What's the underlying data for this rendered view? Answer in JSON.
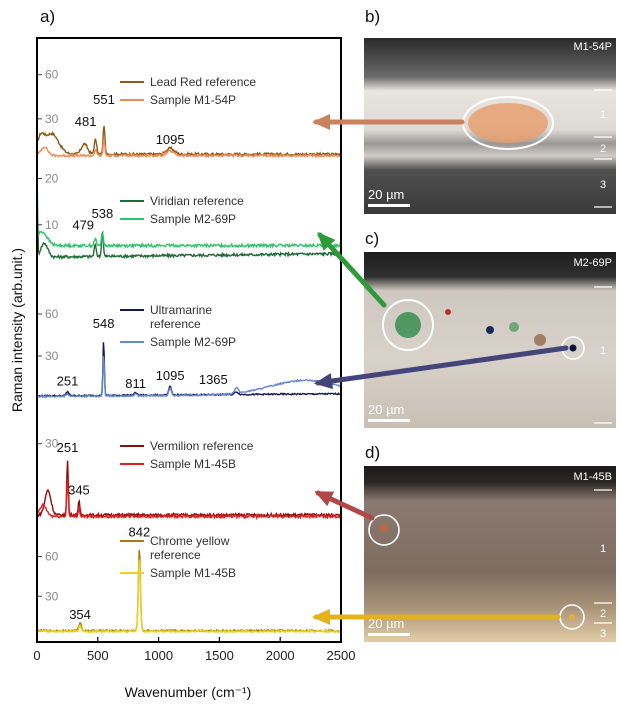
{
  "panels": {
    "a": "a)",
    "b": "b)",
    "c": "c)",
    "d": "d)"
  },
  "chart_data": {
    "type": "line",
    "xlabel": "Wavenumber (cm⁻¹)",
    "ylabel": "Raman intensity (arb.unit.)",
    "xlim": [
      0,
      2500
    ],
    "x_ticks": [
      "0",
      "500",
      "1000",
      "1500",
      "2000",
      "2500"
    ],
    "grid": false,
    "stacks": [
      {
        "id": "lead",
        "ylim": [
          0,
          70
        ],
        "y_ticks": [
          30,
          60
        ],
        "y_tick_labels": [
          "30",
          "60"
        ],
        "series": [
          {
            "name": "Lead Red reference",
            "color": "#8a5a14",
            "base": 6,
            "noise": 0.8,
            "slope": 0,
            "peaks": [
              [
                30,
                10,
                40
              ],
              [
                120,
                14,
                80
              ],
              [
                390,
                7,
                35
              ],
              [
                481,
                10,
                14
              ],
              [
                551,
                20,
                10
              ],
              [
                1095,
                4,
                45
              ]
            ]
          },
          {
            "name": "Sample M1-54P",
            "color": "#f08a55",
            "base": 5,
            "noise": 0.8,
            "slope": 0,
            "peaks": [
              [
                60,
                6,
                40
              ],
              [
                481,
                4,
                12
              ],
              [
                551,
                11,
                10
              ],
              [
                1095,
                3,
                45
              ]
            ]
          }
        ],
        "annotations": [
          {
            "text": "551",
            "x": 551,
            "y": 40
          },
          {
            "text": "481",
            "x": 400,
            "y": 25
          },
          {
            "text": "1095",
            "x": 1095,
            "y": 13
          }
        ]
      },
      {
        "id": "viridian",
        "ylim": [
          0,
          24
        ],
        "y_ticks": [
          10,
          20
        ],
        "y_tick_labels": [
          "10",
          "20"
        ],
        "series": [
          {
            "name": "Viridian reference",
            "color": "#1f6b3a",
            "base": 3,
            "noise": 0.3,
            "slope": 0.0003,
            "peaks": [
              [
                0,
                20,
                6
              ],
              [
                60,
                3,
                40
              ],
              [
                479,
                2.5,
                12
              ],
              [
                538,
                5.5,
                10
              ]
            ]
          },
          {
            "name": "Sample M2-69P",
            "color": "#2fc46a",
            "base": 5.5,
            "noise": 0.3,
            "slope": 0,
            "peaks": [
              [
                40,
                3,
                60
              ],
              [
                479,
                1.5,
                12
              ],
              [
                538,
                3,
                10
              ]
            ]
          }
        ],
        "annotations": [
          {
            "text": "538",
            "x": 538,
            "y": 11.5
          },
          {
            "text": "479",
            "x": 380,
            "y": 9
          }
        ]
      },
      {
        "id": "ultramarine",
        "ylim": [
          0,
          70
        ],
        "y_ticks": [
          30,
          60
        ],
        "y_tick_labels": [
          "30",
          "60"
        ],
        "series": [
          {
            "name": "Ultramarine reference",
            "color": "#16185a",
            "base": 1.5,
            "noise": 0.5,
            "slope": 0.0006,
            "peaks": [
              [
                251,
                3,
                15
              ],
              [
                548,
                40,
                8
              ],
              [
                811,
                2,
                15
              ],
              [
                1095,
                6,
                15
              ],
              [
                1640,
                2,
                20
              ]
            ]
          },
          {
            "name": "Sample M2-69P",
            "color": "#6688cc",
            "base": 1,
            "noise": 0.5,
            "slope": 0.0007,
            "peaks": [
              [
                251,
                2,
                15
              ],
              [
                548,
                30,
                8
              ],
              [
                811,
                1.5,
                15
              ],
              [
                1095,
                5,
                15
              ],
              [
                1640,
                4,
                20
              ],
              [
                2200,
                10,
                400
              ]
            ]
          }
        ],
        "annotations": [
          {
            "text": "548",
            "x": 548,
            "y": 50
          },
          {
            "text": "251",
            "x": 251,
            "y": 9
          },
          {
            "text": "811",
            "x": 811,
            "y": 7
          },
          {
            "text": "1095",
            "x": 1095,
            "y": 13
          },
          {
            "text": "1365",
            "x": 1450,
            "y": 10
          }
        ]
      },
      {
        "id": "vermilion",
        "ylim": [
          0,
          35
        ],
        "y_ticks": [
          30
        ],
        "y_tick_labels": [
          "30"
        ],
        "series": [
          {
            "name": "Vermilion reference",
            "color": "#8a1010",
            "base": 4,
            "noise": 0.5,
            "slope": 0,
            "peaks": [
              [
                90,
                9,
                35
              ],
              [
                251,
                20,
                9
              ],
              [
                345,
                5,
                10
              ]
            ]
          },
          {
            "name": "Sample M1-45B",
            "color": "#e31e1e",
            "base": 3.5,
            "noise": 0.5,
            "slope": 0,
            "peaks": [
              [
                50,
                4,
                40
              ],
              [
                251,
                14,
                9
              ],
              [
                345,
                3,
                10
              ]
            ]
          }
        ],
        "annotations": [
          {
            "text": "251",
            "x": 251,
            "y": 27
          },
          {
            "text": "345",
            "x": 345,
            "y": 11.5
          }
        ]
      },
      {
        "id": "chrome",
        "ylim": [
          0,
          80
        ],
        "y_ticks": [
          30,
          60
        ],
        "y_tick_labels": [
          "30",
          "60"
        ],
        "series": [
          {
            "name": "Chrome yellow reference",
            "color": "#a87e0a",
            "base": 4,
            "noise": 0.7,
            "slope": 0,
            "peaks": [
              [
                354,
                6,
                15
              ],
              [
                842,
                62,
                12
              ]
            ]
          },
          {
            "name": "Sample M1-45B",
            "color": "#f0d01c",
            "base": 3.5,
            "noise": 0.7,
            "slope": 0,
            "peaks": [
              [
                354,
                4,
                15
              ],
              [
                842,
                55,
                12
              ]
            ]
          }
        ],
        "annotations": [
          {
            "text": "842",
            "x": 842,
            "y": 75
          },
          {
            "text": "354",
            "x": 354,
            "y": 13
          }
        ]
      }
    ]
  },
  "legends": [
    {
      "stack": "lead",
      "lines": [
        [
          "Lead Red reference"
        ],
        [
          "Sample M1-54P"
        ]
      ],
      "colors": [
        "#8a5a14",
        "#f08a55"
      ]
    },
    {
      "stack": "viridian",
      "lines": [
        [
          "Viridian reference"
        ],
        [
          "Sample M2-69P"
        ]
      ],
      "colors": [
        "#1f6b3a",
        "#2fc46a"
      ]
    },
    {
      "stack": "ultramarine",
      "lines": [
        [
          "Ultramarine",
          "reference"
        ],
        [
          "Sample M2-69P"
        ]
      ],
      "colors": [
        "#16185a",
        "#6688cc"
      ]
    },
    {
      "stack": "vermilion",
      "lines": [
        [
          "Vermilion reference"
        ],
        [
          "Sample M1-45B"
        ]
      ],
      "colors": [
        "#8a1010",
        "#e31e1e"
      ]
    },
    {
      "stack": "chrome",
      "lines": [
        [
          "Chrome yellow",
          "reference"
        ],
        [
          "Sample M1-45B"
        ]
      ],
      "colors": [
        "#a87e0a",
        "#f0d01c"
      ]
    }
  ],
  "images": {
    "b": {
      "tag": "M1-54P",
      "scale": "20 µm",
      "layers": [
        "1",
        "2",
        "3"
      ]
    },
    "c": {
      "tag": "M2-69P",
      "scale": "20 µm",
      "layers": [
        "1"
      ]
    },
    "d": {
      "tag": "M1-45B",
      "scale": "20 µm",
      "layers": [
        "1",
        "2",
        "3"
      ]
    }
  },
  "arrow_colors": {
    "b": "#c9825e",
    "c_green": "#2f9a3a",
    "c_blue": "#44447a",
    "d_red": "#b04848",
    "d_yellow": "#e3b21c"
  }
}
